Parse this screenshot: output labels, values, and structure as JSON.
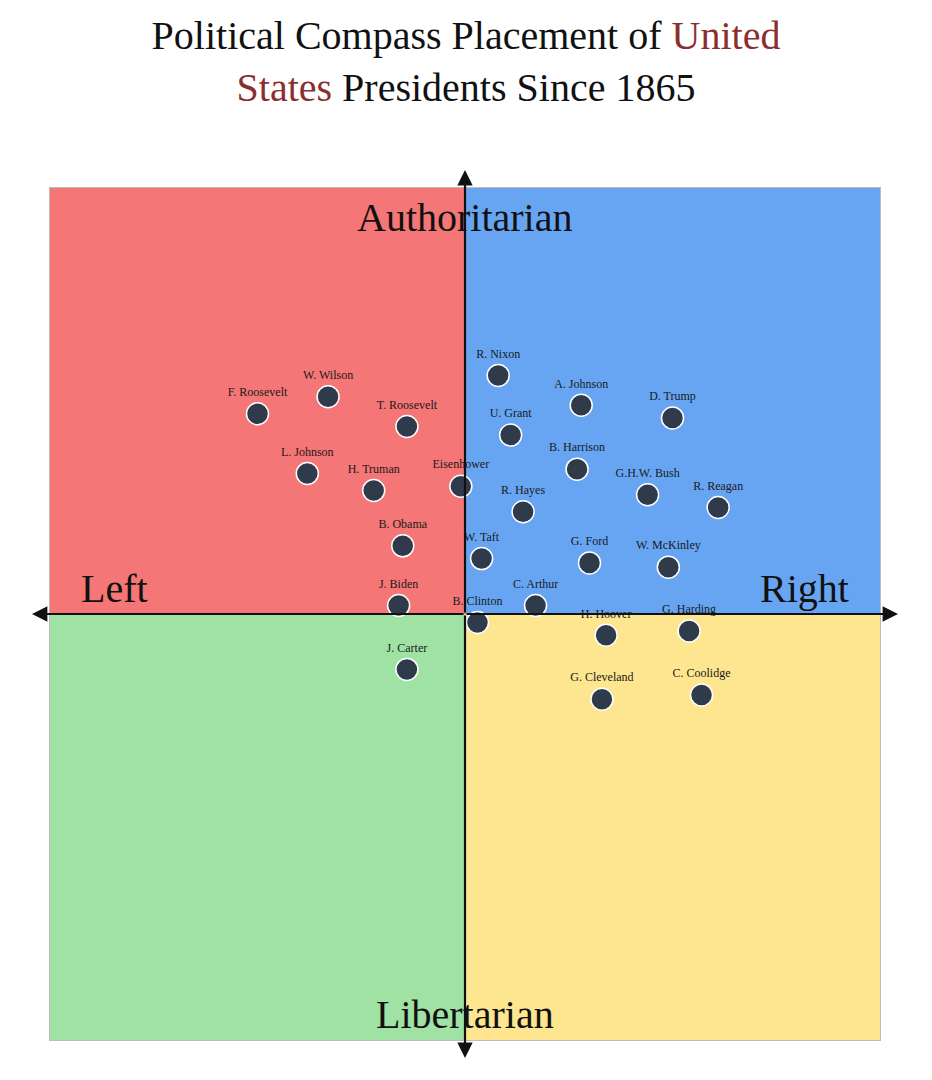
{
  "chart_data": {
    "type": "scatter",
    "title": [
      {
        "text": "Political Compass Placement of ",
        "color": "#111111"
      },
      {
        "text": "United States",
        "color": "#8b2e2e"
      },
      {
        "text": " Presidents Since 1865",
        "color": "#111111"
      }
    ],
    "axis_labels": {
      "top": "Authoritarian",
      "bottom": "Libertarian",
      "left": "Left",
      "right": "Right"
    },
    "quadrant_colors": {
      "top_left": "#f47676",
      "top_right": "#67a5f3",
      "bottom_left": "#9fe2a4",
      "bottom_right": "#fde68f"
    },
    "labels": [
      "F. Roosevelt",
      "W. Wilson",
      "T. Roosevelt",
      "L. Johnson",
      "H. Truman",
      "Eisenhower",
      "B. Obama",
      "J. Biden",
      "J. Carter",
      "R. Nixon",
      "A. Johnson",
      "D. Trump",
      "U. Grant",
      "B. Harrison",
      "G.H.W. Bush",
      "R. Reagan",
      "R. Hayes",
      "W. Taft",
      "G. Ford",
      "W. McKinley",
      "C. Arthur",
      "B. Clinton",
      "H. Hoover",
      "G. Harding",
      "G. Cleveland",
      "C. Coolidge"
    ],
    "x": [
      -5.0,
      -3.3,
      -1.4,
      -3.8,
      -2.2,
      -0.1,
      -1.5,
      -1.6,
      -1.4,
      0.8,
      2.8,
      5.0,
      1.1,
      2.7,
      4.4,
      6.1,
      1.4,
      0.4,
      3.0,
      4.9,
      1.7,
      0.3,
      3.4,
      5.4,
      3.3,
      5.7
    ],
    "y": [
      4.7,
      5.1,
      4.4,
      3.3,
      2.9,
      3.0,
      1.6,
      0.2,
      -1.3,
      5.6,
      4.9,
      4.6,
      4.2,
      3.4,
      2.8,
      2.5,
      2.4,
      1.3,
      1.2,
      1.1,
      0.2,
      -0.2,
      -0.5,
      -0.4,
      -2.0,
      -1.9
    ],
    "xlim": [
      -10,
      10
    ],
    "ylim": [
      -10,
      10
    ],
    "tick_labels": false,
    "grid": false,
    "color": "#2f3a4a",
    "marker": "circle"
  }
}
